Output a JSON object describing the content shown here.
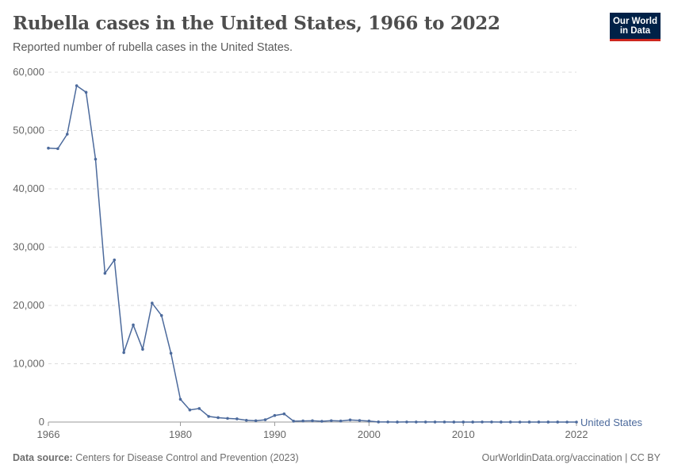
{
  "header": {
    "title": "Rubella cases in the United States, 1966 to 2022",
    "subtitle": "Reported number of rubella cases in the United States.",
    "logo": "Our World in Data"
  },
  "footer": {
    "source_label": "Data source:",
    "source": "Centers for Disease Control and Prevention (2023)",
    "link": "OurWorldinData.org/vaccination | CC BY"
  },
  "chart_data": {
    "type": "line",
    "title": "Rubella cases in the United States, 1966 to 2022",
    "xlabel": "",
    "ylabel": "",
    "xlim": [
      1966,
      2022
    ],
    "ylim": [
      0,
      60000
    ],
    "grid": true,
    "x_ticks": [
      "1966",
      "1980",
      "1990",
      "2000",
      "2010",
      "2022"
    ],
    "y_ticks": [
      "0",
      "10,000",
      "20,000",
      "30,000",
      "40,000",
      "50,000",
      "60,000"
    ],
    "series": [
      {
        "name": "United States",
        "color": "#4c6a9c",
        "x": [
          1966,
          1967,
          1968,
          1969,
          1970,
          1971,
          1972,
          1973,
          1974,
          1975,
          1976,
          1977,
          1978,
          1979,
          1980,
          1981,
          1982,
          1983,
          1984,
          1985,
          1986,
          1987,
          1988,
          1989,
          1990,
          1991,
          1992,
          1993,
          1994,
          1995,
          1996,
          1997,
          1998,
          1999,
          2000,
          2001,
          2002,
          2003,
          2004,
          2005,
          2006,
          2007,
          2008,
          2009,
          2010,
          2011,
          2012,
          2013,
          2014,
          2015,
          2016,
          2017,
          2018,
          2019,
          2020,
          2021,
          2022
        ],
        "values": [
          46975,
          46888,
          49371,
          57686,
          56552,
          45086,
          25507,
          27804,
          11917,
          16652,
          12491,
          20395,
          18269,
          11795,
          3904,
          2077,
          2325,
          970,
          752,
          630,
          551,
          306,
          225,
          396,
          1125,
          1401,
          160,
          192,
          227,
          128,
          238,
          181,
          364,
          267,
          176,
          23,
          18,
          7,
          10,
          11,
          11,
          12,
          16,
          3,
          5,
          4,
          9,
          9,
          6,
          5,
          1,
          7,
          5,
          6,
          6,
          0,
          0
        ]
      }
    ]
  }
}
